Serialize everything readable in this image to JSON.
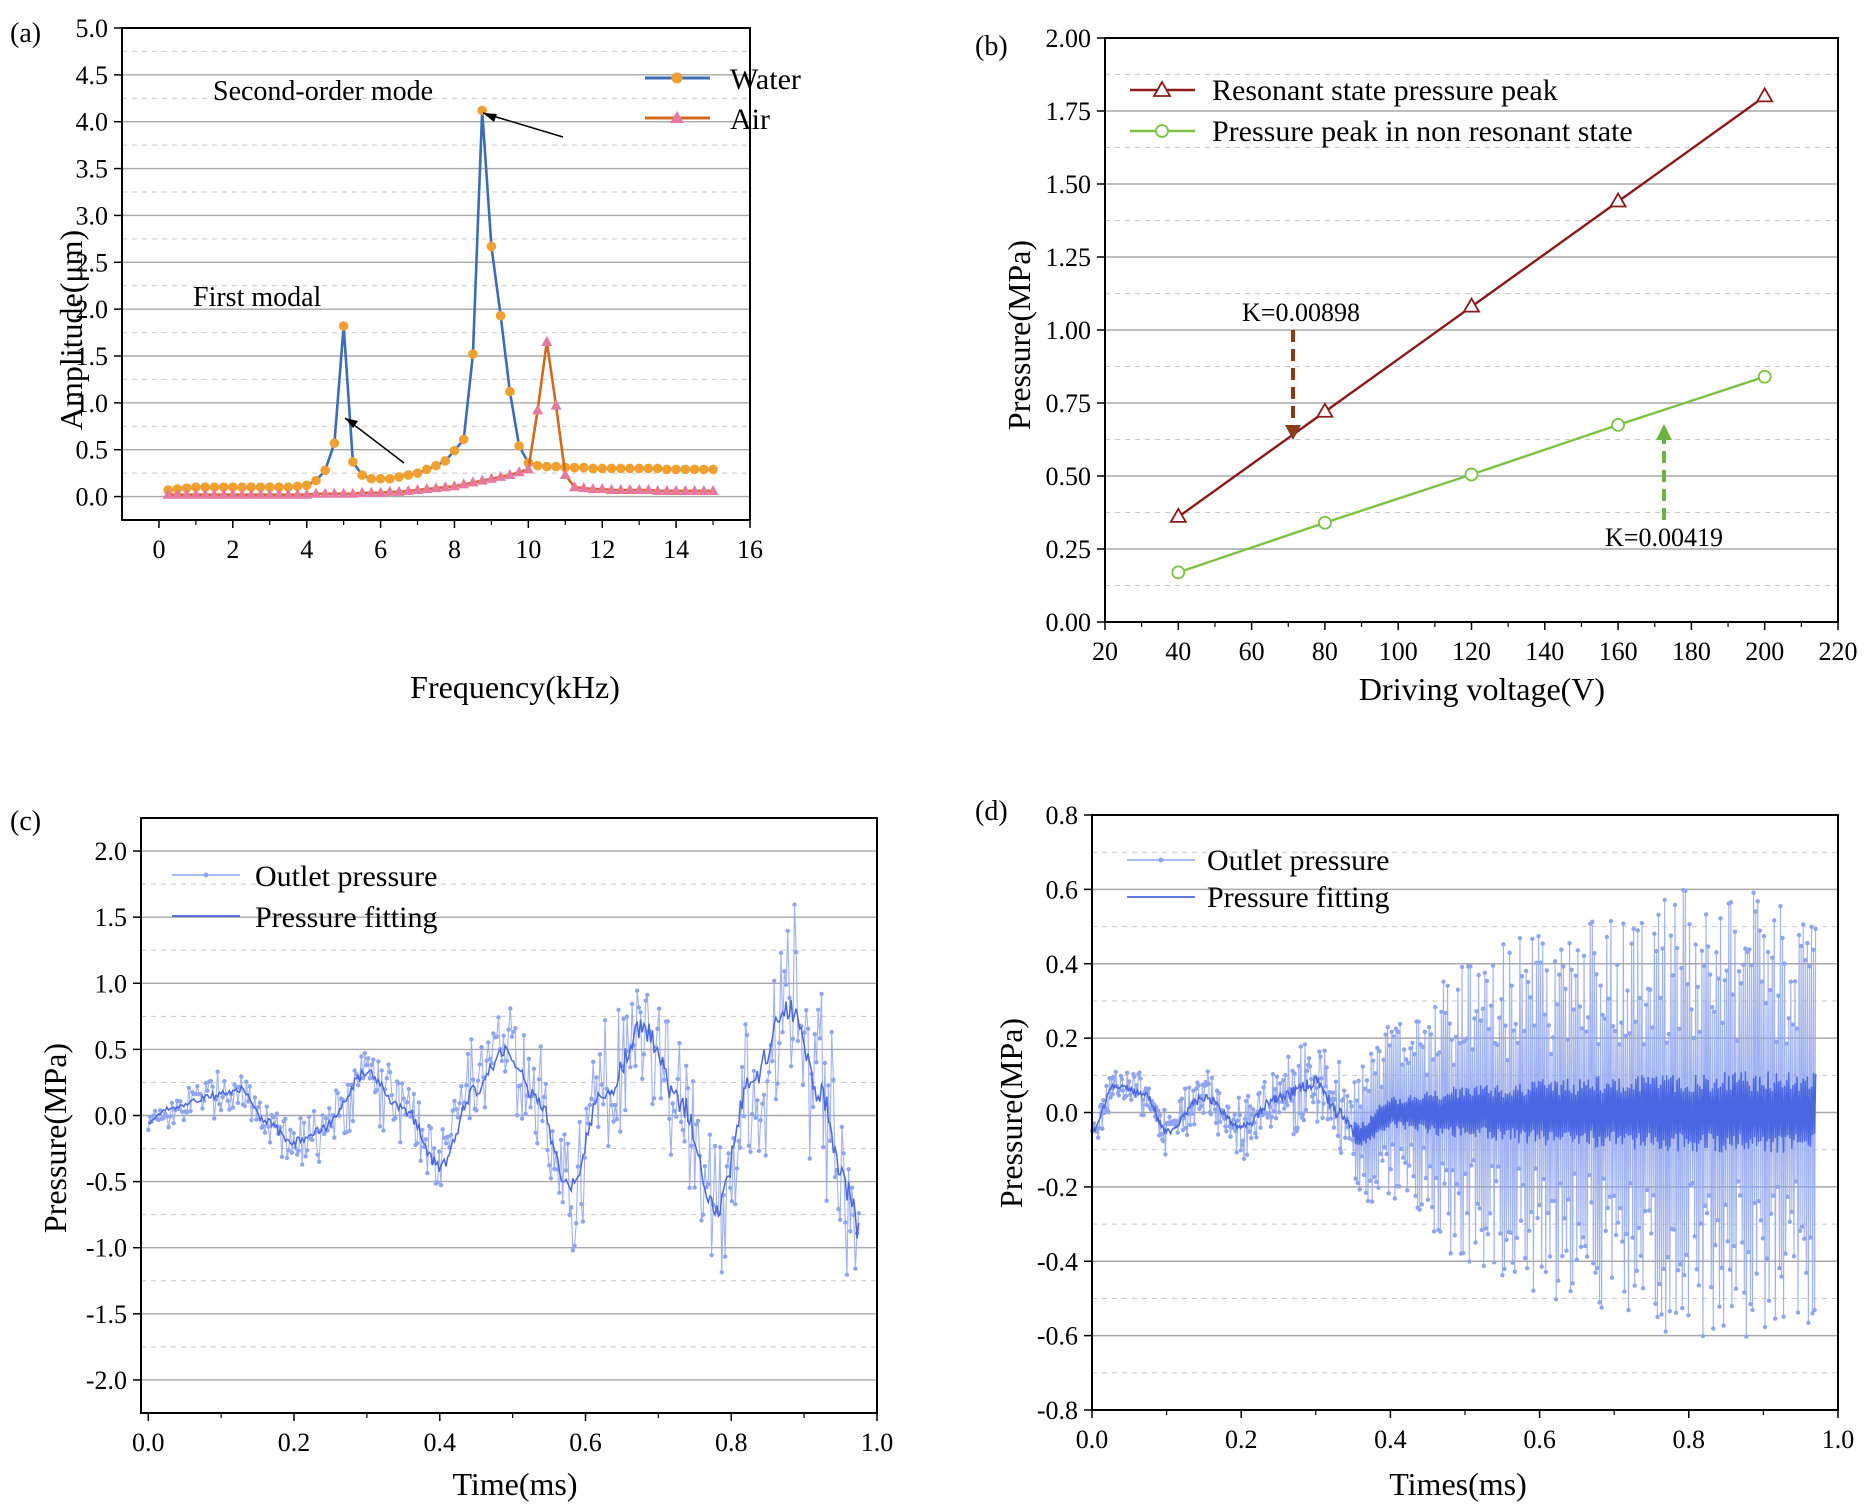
{
  "chart_data": [
    {
      "id": "a",
      "panel_label": "(a)",
      "type": "line",
      "xlabel": "Frequency(kHz)",
      "ylabel": "Amplitude(μm)",
      "xlim": [
        -1,
        16
      ],
      "ylim": [
        -0.25,
        5.0
      ],
      "xticks": [
        0,
        2,
        4,
        6,
        8,
        10,
        12,
        14,
        16
      ],
      "yticks": [
        0.0,
        0.5,
        1.0,
        1.5,
        2.0,
        2.5,
        3.0,
        3.5,
        4.0,
        4.5,
        5.0
      ],
      "ytick_decimals": 1,
      "grid": true,
      "legend_position": "top-right",
      "series": [
        {
          "name": "Water",
          "color": "#3b6db5",
          "marker_color": "#f0a030",
          "marker": "circle",
          "x": [
            0.25,
            0.5,
            0.75,
            1,
            1.25,
            1.5,
            1.75,
            2,
            2.25,
            2.5,
            2.75,
            3,
            3.25,
            3.5,
            3.75,
            4,
            4.25,
            4.5,
            4.75,
            5,
            5.25,
            5.5,
            5.75,
            6,
            6.25,
            6.5,
            6.75,
            7,
            7.25,
            7.5,
            7.75,
            8,
            8.25,
            8.5,
            8.75,
            9,
            9.25,
            9.5,
            9.75,
            10,
            10.25,
            10.5,
            10.75,
            11,
            11.25,
            11.5,
            11.75,
            12,
            12.25,
            12.5,
            12.75,
            13,
            13.25,
            13.5,
            13.75,
            14,
            14.25,
            14.5,
            14.75,
            15
          ],
          "y": [
            0.07,
            0.08,
            0.09,
            0.1,
            0.1,
            0.1,
            0.1,
            0.1,
            0.1,
            0.1,
            0.1,
            0.1,
            0.1,
            0.1,
            0.11,
            0.12,
            0.17,
            0.28,
            0.57,
            1.82,
            0.37,
            0.23,
            0.19,
            0.19,
            0.19,
            0.21,
            0.23,
            0.25,
            0.29,
            0.33,
            0.38,
            0.49,
            0.61,
            1.52,
            4.12,
            2.67,
            1.93,
            1.12,
            0.54,
            0.36,
            0.33,
            0.32,
            0.32,
            0.31,
            0.31,
            0.31,
            0.3,
            0.3,
            0.3,
            0.3,
            0.3,
            0.3,
            0.3,
            0.3,
            0.29,
            0.29,
            0.29,
            0.29,
            0.29,
            0.29
          ]
        },
        {
          "name": "Air",
          "color": "#d4681e",
          "marker_color": "#e8799e",
          "marker": "triangle",
          "x": [
            0.25,
            0.5,
            0.75,
            1,
            1.25,
            1.5,
            1.75,
            2,
            2.25,
            2.5,
            2.75,
            3,
            3.25,
            3.5,
            3.75,
            4,
            4.25,
            4.5,
            4.75,
            5,
            5.25,
            5.5,
            5.75,
            6,
            6.25,
            6.5,
            6.75,
            7,
            7.25,
            7.5,
            7.75,
            8,
            8.25,
            8.5,
            8.75,
            9,
            9.25,
            9.5,
            9.75,
            10,
            10.25,
            10.5,
            10.75,
            11,
            11.25,
            11.5,
            11.75,
            12,
            12.25,
            12.5,
            12.75,
            13,
            13.25,
            13.5,
            13.75,
            14,
            14.25,
            14.5,
            14.75,
            15
          ],
          "y": [
            0.02,
            0.02,
            0.02,
            0.02,
            0.02,
            0.02,
            0.02,
            0.02,
            0.02,
            0.02,
            0.02,
            0.02,
            0.02,
            0.02,
            0.02,
            0.02,
            0.03,
            0.03,
            0.03,
            0.03,
            0.03,
            0.04,
            0.04,
            0.04,
            0.05,
            0.05,
            0.06,
            0.07,
            0.08,
            0.09,
            0.1,
            0.11,
            0.13,
            0.15,
            0.17,
            0.19,
            0.21,
            0.23,
            0.26,
            0.29,
            0.92,
            1.65,
            0.97,
            0.23,
            0.1,
            0.09,
            0.08,
            0.08,
            0.07,
            0.07,
            0.07,
            0.07,
            0.07,
            0.06,
            0.06,
            0.06,
            0.06,
            0.06,
            0.06,
            0.06
          ]
        }
      ],
      "annotations": [
        {
          "text": "Second-order mode",
          "arrow_to": [
            8.65,
            4.12
          ]
        },
        {
          "text": "First modal",
          "arrow_to": [
            4.9,
            1.42
          ]
        }
      ]
    },
    {
      "id": "b",
      "panel_label": "(b)",
      "type": "line",
      "xlabel": "Driving voltage(V)",
      "ylabel": "Pressure(MPa)",
      "xlim": [
        20,
        220
      ],
      "ylim": [
        0.0,
        2.0
      ],
      "xticks": [
        20,
        40,
        60,
        80,
        100,
        120,
        140,
        160,
        180,
        200,
        220
      ],
      "yticks": [
        0.0,
        0.25,
        0.5,
        0.75,
        1.0,
        1.25,
        1.5,
        1.75,
        2.0
      ],
      "ytick_decimals": 2,
      "grid": true,
      "legend_position": "top-left",
      "series": [
        {
          "name": "Resonant state pressure peak",
          "color": "#8b1a1a",
          "marker_color": "#8b1a1a",
          "marker": "triangle-open",
          "x": [
            40,
            80,
            120,
            160,
            200
          ],
          "y": [
            0.36,
            0.72,
            1.08,
            1.44,
            1.8
          ]
        },
        {
          "name": "Pressure peak in non resonant state",
          "color": "#7cc242",
          "marker_color": "#7cc242",
          "marker": "circle-open",
          "x": [
            40,
            80,
            120,
            160,
            200
          ],
          "y": [
            0.17,
            0.34,
            0.505,
            0.675,
            0.84
          ]
        }
      ],
      "annotations": [
        {
          "text": "K=0.00898",
          "color": "#8b3a1a"
        },
        {
          "text": "K=0.00419",
          "color": "#6cb33f"
        }
      ]
    },
    {
      "id": "c",
      "panel_label": "(c)",
      "type": "line",
      "xlabel": "Time(ms)",
      "ylabel": "Pressure(MPa)",
      "xlim": [
        -0.01,
        1.0
      ],
      "ylim": [
        -2.25,
        2.25
      ],
      "xticks": [
        0.0,
        0.2,
        0.4,
        0.6,
        0.8,
        1.0
      ],
      "yticks": [
        -2.0,
        -1.5,
        -1.0,
        -0.5,
        0.0,
        0.5,
        1.0,
        1.5,
        2.0
      ],
      "ytick_decimals": 1,
      "grid": true,
      "legend_position": "top-left",
      "series": [
        {
          "name": "Outlet pressure",
          "color": "#8fa5f0",
          "marker": "dot",
          "style": "noisy-signal"
        },
        {
          "name": "Pressure fitting",
          "color": "#4a66e0",
          "style": "smooth-fit"
        }
      ],
      "fit_waypoints": {
        "t": [
          0,
          0.03,
          0.09,
          0.13,
          0.16,
          0.2,
          0.24,
          0.3,
          0.35,
          0.4,
          0.45,
          0.49,
          0.53,
          0.58,
          0.62,
          0.68,
          0.73,
          0.78,
          0.83,
          0.88,
          0.92,
          0.96,
          0.975
        ],
        "p": [
          -0.05,
          0.05,
          0.15,
          0.2,
          -0.05,
          -0.2,
          -0.1,
          0.32,
          0.05,
          -0.38,
          0.2,
          0.5,
          0.15,
          -0.55,
          0.1,
          0.65,
          0.1,
          -0.68,
          0.3,
          0.82,
          0.2,
          -0.55,
          -0.85
        ]
      },
      "noise_envelope": {
        "t": [
          0,
          0.1,
          0.2,
          0.3,
          0.4,
          0.5,
          0.6,
          0.7,
          0.8,
          0.9,
          0.975
        ],
        "amp": [
          0.15,
          0.22,
          0.3,
          0.35,
          0.4,
          0.5,
          0.65,
          0.75,
          0.75,
          0.85,
          0.9
        ]
      },
      "dense_points": 420
    },
    {
      "id": "d",
      "panel_label": "(d)",
      "type": "line",
      "xlabel": "Times(ms)",
      "ylabel": "Pressure(MPa)",
      "xlim": [
        0.0,
        1.0
      ],
      "ylim": [
        -0.8,
        0.8
      ],
      "xticks": [
        0.0,
        0.2,
        0.4,
        0.6,
        0.8,
        1.0
      ],
      "yticks": [
        -0.8,
        -0.6,
        -0.4,
        -0.2,
        0.0,
        0.2,
        0.4,
        0.6,
        0.8
      ],
      "ytick_decimals": 1,
      "grid": true,
      "legend_position": "top-left",
      "series": [
        {
          "name": "Outlet pressure",
          "color": "#8fa5f0",
          "marker": "dot",
          "style": "noisy-signal"
        },
        {
          "name": "Pressure fitting",
          "color": "#4a66e0",
          "style": "smooth-fit"
        }
      ],
      "fit_waypoints": {
        "t": [
          0,
          0.03,
          0.07,
          0.1,
          0.15,
          0.2,
          0.25,
          0.3,
          0.33,
          0.36,
          0.4,
          0.5,
          0.6,
          0.97
        ],
        "p": [
          -0.05,
          0.07,
          0.05,
          -0.05,
          0.04,
          -0.04,
          0.04,
          0.08,
          0.0,
          -0.06,
          0.0,
          0.0,
          0.0,
          0.0
        ]
      },
      "noise_envelope": {
        "t": [
          0,
          0.1,
          0.2,
          0.3,
          0.35,
          0.4,
          0.5,
          0.6,
          0.7,
          0.8,
          0.9,
          0.97
        ],
        "amp": [
          0.06,
          0.08,
          0.1,
          0.14,
          0.18,
          0.25,
          0.4,
          0.5,
          0.55,
          0.6,
          0.62,
          0.6
        ]
      },
      "dense_points": 700
    }
  ]
}
